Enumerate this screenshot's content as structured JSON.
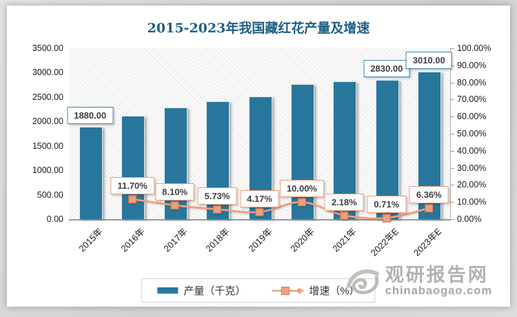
{
  "chart_data": {
    "type": "bar+line",
    "title": "2015-2023年我国藏红花产量及增速",
    "categories": [
      "2015年",
      "2016年",
      "2017年",
      "2018年",
      "2019年",
      "2020年",
      "2021年",
      "2022年E",
      "2023年E"
    ],
    "series": [
      {
        "name": "产量（千克）",
        "type": "bar",
        "axis": "left",
        "color": "#29769C",
        "values": [
          1880,
          2100,
          2270,
          2400,
          2500,
          2750,
          2810,
          2830,
          3010
        ],
        "labels": {
          "0": "1880.00",
          "7": "2830.00",
          "8": "3010.00"
        }
      },
      {
        "name": "增速（%）",
        "type": "line",
        "axis": "right",
        "color": "#ECA07E",
        "marker": "square",
        "values": [
          null,
          11.7,
          8.1,
          5.73,
          4.17,
          10.0,
          2.18,
          0.71,
          6.36
        ],
        "labels": {
          "1": "11.70%",
          "2": "8.10%",
          "3": "5.73%",
          "4": "4.17%",
          "5": "10.00%",
          "6": "2.18%",
          "7": "0.71%",
          "8": "6.36%"
        }
      }
    ],
    "left_axis": {
      "min": 0,
      "max": 3500,
      "ticks": [
        "3500.00",
        "3000.00",
        "2500.00",
        "2000.00",
        "1500.00",
        "1000.00",
        "500.00",
        "0.00"
      ]
    },
    "right_axis": {
      "min": 0,
      "max": 100,
      "ticks": [
        "100.00%",
        "90.00%",
        "80.00%",
        "70.00%",
        "60.00%",
        "50.00%",
        "40.00%",
        "30.00%",
        "20.00%",
        "10.00%",
        "0.00%"
      ]
    },
    "grid": "hatched-background",
    "legend_position": "bottom"
  },
  "watermark": {
    "site_name": "观研报告网",
    "site_url": "chinabaogao.com"
  },
  "colors": {
    "bar": "#29769C",
    "line": "#ECA07E",
    "marker_border": "#D27B55",
    "title": "#1E5F87",
    "value_label_border": "#4189B2",
    "pct_label_border": "#ECA07E",
    "label_text": "#3f3f3f"
  }
}
